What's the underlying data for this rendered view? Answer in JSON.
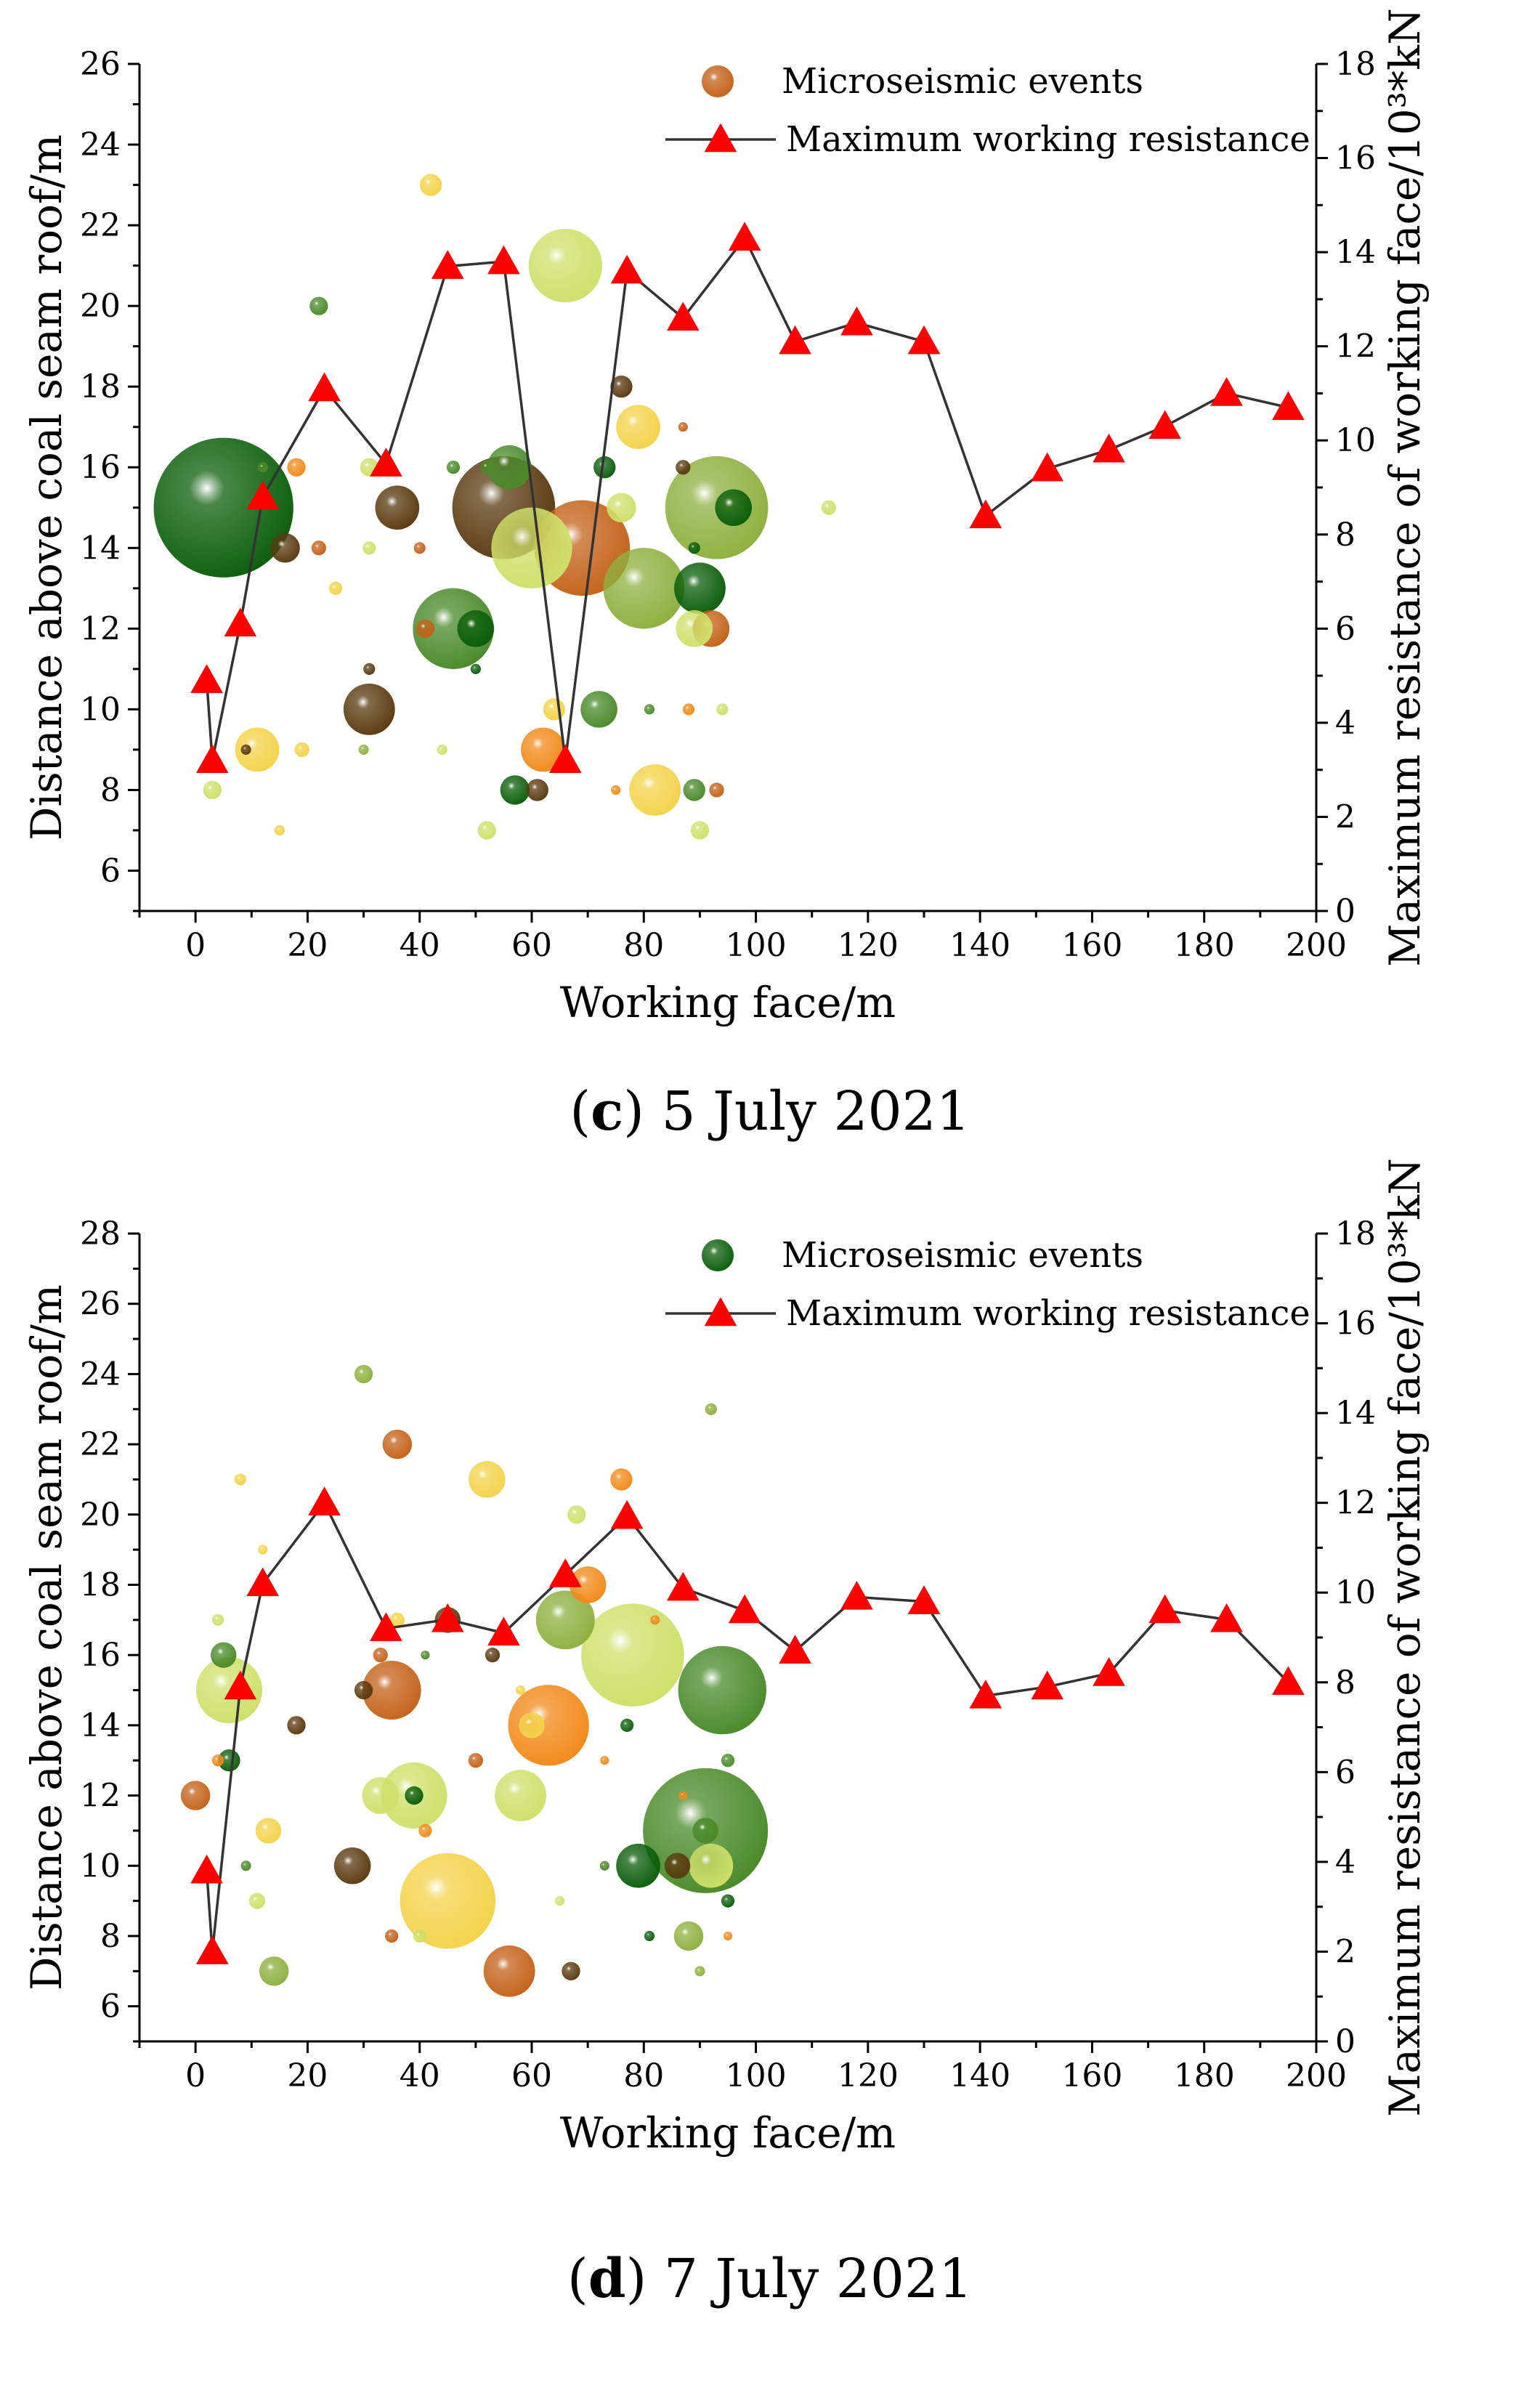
{
  "colors": {
    "line": "#333333",
    "marker": "#ff0000",
    "dark_green": "#0b5e0b",
    "mid_green": "#4a8a2a",
    "light_green": "#cfe06a",
    "olive": "#8fb040",
    "yellow": "#f4d34a",
    "orange": "#f28a1a",
    "brown": "#c4621a",
    "dark_brown": "#5a3a10"
  },
  "chart_data": [
    {
      "type": "scatter",
      "caption": {
        "letter": "c",
        "text": " 5 July 2021"
      },
      "xlabel": "Working face/m",
      "ylabel": "Distance above coal seam roof/m",
      "y2label": "Maximum resistance of working face/10³*kN",
      "xlim": [
        -10,
        200
      ],
      "ylim": [
        5,
        26
      ],
      "y2lim": [
        0,
        18
      ],
      "xticks": [
        0,
        20,
        40,
        60,
        80,
        100,
        120,
        140,
        160,
        180,
        200
      ],
      "yticks": [
        6,
        8,
        10,
        12,
        14,
        16,
        18,
        20,
        22,
        24,
        26
      ],
      "y2ticks": [
        0,
        2,
        4,
        6,
        8,
        10,
        12,
        14,
        16,
        18
      ],
      "legend": {
        "bubble": "Microseismic events",
        "line": "Maximum working resistance",
        "bubble_color": "#c4621a"
      },
      "series": [
        {
          "name": "Maximum working resistance",
          "axis": "right",
          "x": [
            2,
            3,
            8,
            12,
            23,
            34,
            45,
            55,
            66,
            77,
            87,
            98,
            107,
            118,
            130,
            141,
            152,
            163,
            173,
            184,
            195
          ],
          "y": [
            4.9,
            3.2,
            6.1,
            8.8,
            11.1,
            9.5,
            13.7,
            13.8,
            3.2,
            13.6,
            12.6,
            14.3,
            12.1,
            12.5,
            12.1,
            8.4,
            9.4,
            9.8,
            10.3,
            11.0,
            10.7
          ]
        },
        {
          "name": "Microseismic events",
          "axis": "left",
          "points": [
            {
              "x": 5,
              "y": 15,
              "r": 19,
              "c": "dark_green"
            },
            {
              "x": 55,
              "y": 15,
              "r": 14,
              "c": "dark_brown"
            },
            {
              "x": 69,
              "y": 14,
              "r": 13,
              "c": "brown"
            },
            {
              "x": 93,
              "y": 15,
              "r": 14,
              "c": "olive"
            },
            {
              "x": 46,
              "y": 12,
              "r": 11,
              "c": "mid_green"
            },
            {
              "x": 80,
              "y": 13,
              "r": 11,
              "c": "olive"
            },
            {
              "x": 60,
              "y": 14,
              "r": 11,
              "c": "light_green"
            },
            {
              "x": 66,
              "y": 21,
              "r": 10,
              "c": "light_green"
            },
            {
              "x": 82,
              "y": 8,
              "r": 7,
              "c": "yellow"
            },
            {
              "x": 31,
              "y": 10,
              "r": 7,
              "c": "dark_brown"
            },
            {
              "x": 90,
              "y": 13,
              "r": 7,
              "c": "dark_green"
            },
            {
              "x": 62,
              "y": 9,
              "r": 6,
              "c": "orange"
            },
            {
              "x": 79,
              "y": 17,
              "r": 6,
              "c": "yellow"
            },
            {
              "x": 11,
              "y": 9,
              "r": 6,
              "c": "yellow"
            },
            {
              "x": 36,
              "y": 15,
              "r": 6,
              "c": "dark_brown"
            },
            {
              "x": 56,
              "y": 16,
              "r": 6,
              "c": "mid_green"
            },
            {
              "x": 72,
              "y": 10,
              "r": 5,
              "c": "mid_green"
            },
            {
              "x": 92,
              "y": 12,
              "r": 5,
              "c": "brown"
            },
            {
              "x": 89,
              "y": 12,
              "r": 5,
              "c": "light_green"
            },
            {
              "x": 50,
              "y": 12,
              "r": 5,
              "c": "dark_green"
            },
            {
              "x": 96,
              "y": 15,
              "r": 5,
              "c": "dark_green"
            },
            {
              "x": 76,
              "y": 15,
              "r": 4,
              "c": "light_green"
            },
            {
              "x": 16,
              "y": 14,
              "r": 4,
              "c": "dark_brown"
            },
            {
              "x": 57,
              "y": 8,
              "r": 4,
              "c": "dark_green"
            },
            {
              "x": 61,
              "y": 8,
              "r": 3,
              "c": "dark_brown"
            },
            {
              "x": 76,
              "y": 18,
              "r": 3,
              "c": "dark_brown"
            },
            {
              "x": 64,
              "y": 10,
              "r": 3,
              "c": "yellow"
            },
            {
              "x": 89,
              "y": 8,
              "r": 3,
              "c": "mid_green"
            },
            {
              "x": 73,
              "y": 16,
              "r": 3,
              "c": "dark_green"
            },
            {
              "x": 42,
              "y": 23,
              "r": 3,
              "c": "yellow"
            },
            {
              "x": 22,
              "y": 20,
              "r": 2.5,
              "c": "mid_green"
            },
            {
              "x": 31,
              "y": 16,
              "r": 2.5,
              "c": "light_green"
            },
            {
              "x": 18,
              "y": 16,
              "r": 2.5,
              "c": "orange"
            },
            {
              "x": 3,
              "y": 8,
              "r": 2.5,
              "c": "light_green"
            },
            {
              "x": 41,
              "y": 12,
              "r": 2.5,
              "c": "brown"
            },
            {
              "x": 90,
              "y": 7,
              "r": 2.5,
              "c": "light_green"
            },
            {
              "x": 93,
              "y": 8,
              "r": 2,
              "c": "brown"
            },
            {
              "x": 52,
              "y": 7,
              "r": 2.5,
              "c": "light_green"
            },
            {
              "x": 113,
              "y": 15,
              "r": 2,
              "c": "light_green"
            },
            {
              "x": 87,
              "y": 16,
              "r": 2,
              "c": "dark_brown"
            },
            {
              "x": 19,
              "y": 9,
              "r": 2,
              "c": "yellow"
            },
            {
              "x": 22,
              "y": 14,
              "r": 2,
              "c": "brown"
            },
            {
              "x": 25,
              "y": 13,
              "r": 1.8,
              "c": "yellow"
            },
            {
              "x": 31,
              "y": 14,
              "r": 1.8,
              "c": "light_green"
            },
            {
              "x": 46,
              "y": 16,
              "r": 1.8,
              "c": "mid_green"
            },
            {
              "x": 52,
              "y": 16,
              "r": 1.8,
              "c": "mid_green"
            },
            {
              "x": 31,
              "y": 11,
              "r": 1.6,
              "c": "dark_brown"
            },
            {
              "x": 40,
              "y": 14,
              "r": 1.6,
              "c": "brown"
            },
            {
              "x": 89,
              "y": 14,
              "r": 1.6,
              "c": "dark_green"
            },
            {
              "x": 94,
              "y": 10,
              "r": 1.6,
              "c": "light_green"
            },
            {
              "x": 88,
              "y": 10,
              "r": 1.6,
              "c": "orange"
            },
            {
              "x": 81,
              "y": 10,
              "r": 1.4,
              "c": "mid_green"
            },
            {
              "x": 12,
              "y": 16,
              "r": 1.4,
              "c": "mid_green"
            },
            {
              "x": 9,
              "y": 9,
              "r": 1.4,
              "c": "dark_brown"
            },
            {
              "x": 15,
              "y": 7,
              "r": 1.4,
              "c": "yellow"
            },
            {
              "x": 44,
              "y": 9,
              "r": 1.4,
              "c": "light_green"
            },
            {
              "x": 30,
              "y": 9,
              "r": 1.4,
              "c": "olive"
            },
            {
              "x": 50,
              "y": 11,
              "r": 1.4,
              "c": "dark_green"
            },
            {
              "x": 87,
              "y": 17,
              "r": 1.3,
              "c": "brown"
            },
            {
              "x": 75,
              "y": 8,
              "r": 1.3,
              "c": "orange"
            }
          ]
        }
      ]
    },
    {
      "type": "scatter",
      "caption": {
        "letter": "d",
        "text": " 7 July 2021"
      },
      "xlabel": "Working face/m",
      "ylabel": "Distance above coal seam roof/m",
      "y2label": "Maximum resistance of working face/10³*kN",
      "xlim": [
        -10,
        200
      ],
      "ylim": [
        5,
        28
      ],
      "y2lim": [
        0,
        18
      ],
      "xticks": [
        0,
        20,
        40,
        60,
        80,
        100,
        120,
        140,
        160,
        180,
        200
      ],
      "yticks": [
        6,
        8,
        10,
        12,
        14,
        16,
        18,
        20,
        22,
        24,
        26,
        28
      ],
      "y2ticks": [
        0,
        2,
        4,
        6,
        8,
        10,
        12,
        14,
        16,
        18
      ],
      "legend": {
        "bubble": "Microseismic events",
        "line": "Maximum working resistance",
        "bubble_color": "#0b5e0b"
      },
      "series": [
        {
          "name": "Maximum working resistance",
          "axis": "right",
          "x": [
            2,
            3,
            8,
            12,
            23,
            34,
            45,
            55,
            66,
            77,
            87,
            98,
            107,
            118,
            130,
            141,
            152,
            163,
            173,
            184,
            195
          ],
          "y": [
            3.8,
            2.0,
            7.9,
            10.2,
            12.0,
            9.2,
            9.4,
            9.1,
            10.4,
            11.7,
            10.1,
            9.6,
            8.7,
            9.9,
            9.8,
            7.7,
            7.9,
            8.2,
            9.6,
            9.4,
            8.0
          ]
        },
        {
          "name": "Microseismic events",
          "axis": "left",
          "points": [
            {
              "x": 91,
              "y": 11,
              "r": 17,
              "c": "mid_green"
            },
            {
              "x": 45,
              "y": 9,
              "r": 13,
              "c": "yellow"
            },
            {
              "x": 78,
              "y": 16,
              "r": 14,
              "c": "light_green"
            },
            {
              "x": 94,
              "y": 15,
              "r": 12,
              "c": "mid_green"
            },
            {
              "x": 63,
              "y": 14,
              "r": 11,
              "c": "orange"
            },
            {
              "x": 39,
              "y": 12,
              "r": 9,
              "c": "light_green"
            },
            {
              "x": 66,
              "y": 17,
              "r": 8,
              "c": "olive"
            },
            {
              "x": 6,
              "y": 15,
              "r": 9,
              "c": "light_green"
            },
            {
              "x": 35,
              "y": 15,
              "r": 8,
              "c": "brown"
            },
            {
              "x": 56,
              "y": 7,
              "r": 7,
              "c": "brown"
            },
            {
              "x": 58,
              "y": 12,
              "r": 7,
              "c": "light_green"
            },
            {
              "x": 92,
              "y": 10,
              "r": 6,
              "c": "light_green"
            },
            {
              "x": 79,
              "y": 10,
              "r": 6,
              "c": "dark_green"
            },
            {
              "x": 52,
              "y": 21,
              "r": 5,
              "c": "yellow"
            },
            {
              "x": 28,
              "y": 10,
              "r": 5,
              "c": "dark_brown"
            },
            {
              "x": 33,
              "y": 12,
              "r": 5,
              "c": "light_green"
            },
            {
              "x": 70,
              "y": 18,
              "r": 5,
              "c": "orange"
            },
            {
              "x": 36,
              "y": 22,
              "r": 4,
              "c": "brown"
            },
            {
              "x": 88,
              "y": 8,
              "r": 4,
              "c": "olive"
            },
            {
              "x": 14,
              "y": 7,
              "r": 4,
              "c": "olive"
            },
            {
              "x": 0,
              "y": 12,
              "r": 4,
              "c": "brown"
            },
            {
              "x": 5,
              "y": 16,
              "r": 3.5,
              "c": "mid_green"
            },
            {
              "x": 86,
              "y": 10,
              "r": 3.5,
              "c": "dark_brown"
            },
            {
              "x": 13,
              "y": 11,
              "r": 3.5,
              "c": "yellow"
            },
            {
              "x": 91,
              "y": 11,
              "r": 3.5,
              "c": "mid_green"
            },
            {
              "x": 60,
              "y": 14,
              "r": 3.5,
              "c": "yellow"
            },
            {
              "x": 45,
              "y": 17,
              "r": 3.5,
              "c": "dark_brown"
            },
            {
              "x": 76,
              "y": 21,
              "r": 3,
              "c": "orange"
            },
            {
              "x": 6,
              "y": 13,
              "r": 3,
              "c": "dark_green"
            },
            {
              "x": 30,
              "y": 24,
              "r": 2.5,
              "c": "olive"
            },
            {
              "x": 30,
              "y": 15,
              "r": 2.5,
              "c": "dark_brown"
            },
            {
              "x": 18,
              "y": 14,
              "r": 2.5,
              "c": "dark_brown"
            },
            {
              "x": 68,
              "y": 20,
              "r": 2.5,
              "c": "light_green"
            },
            {
              "x": 67,
              "y": 7,
              "r": 2.5,
              "c": "dark_brown"
            },
            {
              "x": 39,
              "y": 12,
              "r": 2.5,
              "c": "dark_green"
            },
            {
              "x": 11,
              "y": 9,
              "r": 2.2,
              "c": "light_green"
            },
            {
              "x": 33,
              "y": 16,
              "r": 2,
              "c": "brown"
            },
            {
              "x": 36,
              "y": 17,
              "r": 2,
              "c": "yellow"
            },
            {
              "x": 50,
              "y": 13,
              "r": 2,
              "c": "brown"
            },
            {
              "x": 53,
              "y": 16,
              "r": 2,
              "c": "dark_brown"
            },
            {
              "x": 35,
              "y": 8,
              "r": 1.8,
              "c": "brown"
            },
            {
              "x": 40,
              "y": 8,
              "r": 1.8,
              "c": "light_green"
            },
            {
              "x": 41,
              "y": 11,
              "r": 1.8,
              "c": "orange"
            },
            {
              "x": 77,
              "y": 14,
              "r": 1.8,
              "c": "dark_green"
            },
            {
              "x": 95,
              "y": 13,
              "r": 1.8,
              "c": "mid_green"
            },
            {
              "x": 95,
              "y": 9,
              "r": 1.8,
              "c": "dark_green"
            },
            {
              "x": 92,
              "y": 23,
              "r": 1.6,
              "c": "olive"
            },
            {
              "x": 8,
              "y": 21,
              "r": 1.6,
              "c": "yellow"
            },
            {
              "x": 4,
              "y": 17,
              "r": 1.6,
              "c": "light_green"
            },
            {
              "x": 4,
              "y": 13,
              "r": 1.6,
              "c": "orange"
            },
            {
              "x": 9,
              "y": 10,
              "r": 1.4,
              "c": "mid_green"
            },
            {
              "x": 81,
              "y": 8,
              "r": 1.4,
              "c": "dark_green"
            },
            {
              "x": 90,
              "y": 7,
              "r": 1.4,
              "c": "olive"
            },
            {
              "x": 12,
              "y": 19,
              "r": 1.3,
              "c": "yellow"
            },
            {
              "x": 82,
              "y": 17,
              "r": 1.3,
              "c": "orange"
            },
            {
              "x": 73,
              "y": 10,
              "r": 1.3,
              "c": "mid_green"
            },
            {
              "x": 58,
              "y": 15,
              "r": 1.3,
              "c": "yellow"
            },
            {
              "x": 65,
              "y": 9,
              "r": 1.3,
              "c": "light_green"
            },
            {
              "x": 41,
              "y": 16,
              "r": 1.2,
              "c": "mid_green"
            },
            {
              "x": 95,
              "y": 8,
              "r": 1.2,
              "c": "orange"
            },
            {
              "x": 73,
              "y": 13,
              "r": 1.2,
              "c": "orange"
            },
            {
              "x": 87,
              "y": 12,
              "r": 1.2,
              "c": "orange"
            }
          ]
        }
      ]
    }
  ]
}
